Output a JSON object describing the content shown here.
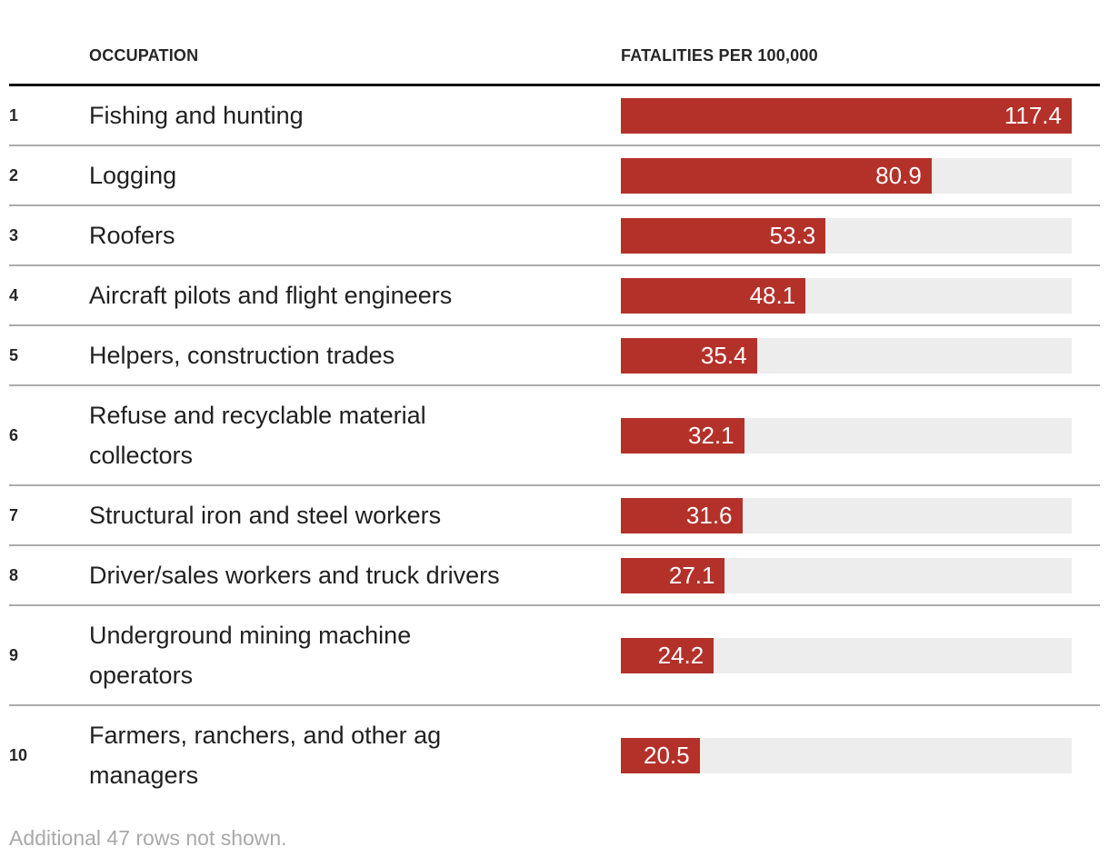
{
  "table": {
    "headers": {
      "occupation": "OCCUPATION",
      "fatalities": "FATALITIES PER 100,000"
    }
  },
  "chart_data": {
    "type": "bar",
    "title": "",
    "xlabel": "FATALITIES PER 100,000",
    "ylabel": "OCCUPATION",
    "xlim": [
      0,
      117.4
    ],
    "grid": false,
    "legend": "none",
    "orientation": "horizontal",
    "bar_color": "#b4312a",
    "track_color": "#ededed",
    "categories": [
      "Fishing and hunting",
      "Logging",
      "Roofers",
      "Aircraft pilots and flight engineers",
      "Helpers, construction trades",
      "Refuse and recyclable material collectors",
      "Structural iron and steel workers",
      "Driver/sales workers and truck drivers",
      "Underground mining machine operators",
      "Farmers, ranchers, and other ag managers"
    ],
    "values": [
      117.4,
      80.9,
      53.3,
      48.1,
      35.4,
      32.1,
      31.6,
      27.1,
      24.2,
      20.5
    ],
    "rows": [
      {
        "rank": "1",
        "value": "117.4",
        "lines": [
          "Fishing and hunting"
        ]
      },
      {
        "rank": "2",
        "value": "80.9",
        "lines": [
          "Logging"
        ]
      },
      {
        "rank": "3",
        "value": "53.3",
        "lines": [
          "Roofers"
        ]
      },
      {
        "rank": "4",
        "value": "48.1",
        "lines": [
          "Aircraft pilots and flight engineers"
        ]
      },
      {
        "rank": "5",
        "value": "35.4",
        "lines": [
          "Helpers, construction trades"
        ]
      },
      {
        "rank": "6",
        "value": "32.1",
        "lines": [
          "Refuse and recyclable material",
          "collectors"
        ]
      },
      {
        "rank": "7",
        "value": "31.6",
        "lines": [
          "Structural iron and steel workers"
        ]
      },
      {
        "rank": "8",
        "value": "27.1",
        "lines": [
          "Driver/sales workers and truck drivers"
        ]
      },
      {
        "rank": "9",
        "value": "24.2",
        "lines": [
          "Underground mining machine",
          "operators"
        ]
      },
      {
        "rank": "10",
        "value": "20.5",
        "lines": [
          "Farmers, ranchers, and other ag",
          "managers"
        ]
      }
    ]
  },
  "footer": {
    "note": "Additional 47 rows not shown."
  }
}
